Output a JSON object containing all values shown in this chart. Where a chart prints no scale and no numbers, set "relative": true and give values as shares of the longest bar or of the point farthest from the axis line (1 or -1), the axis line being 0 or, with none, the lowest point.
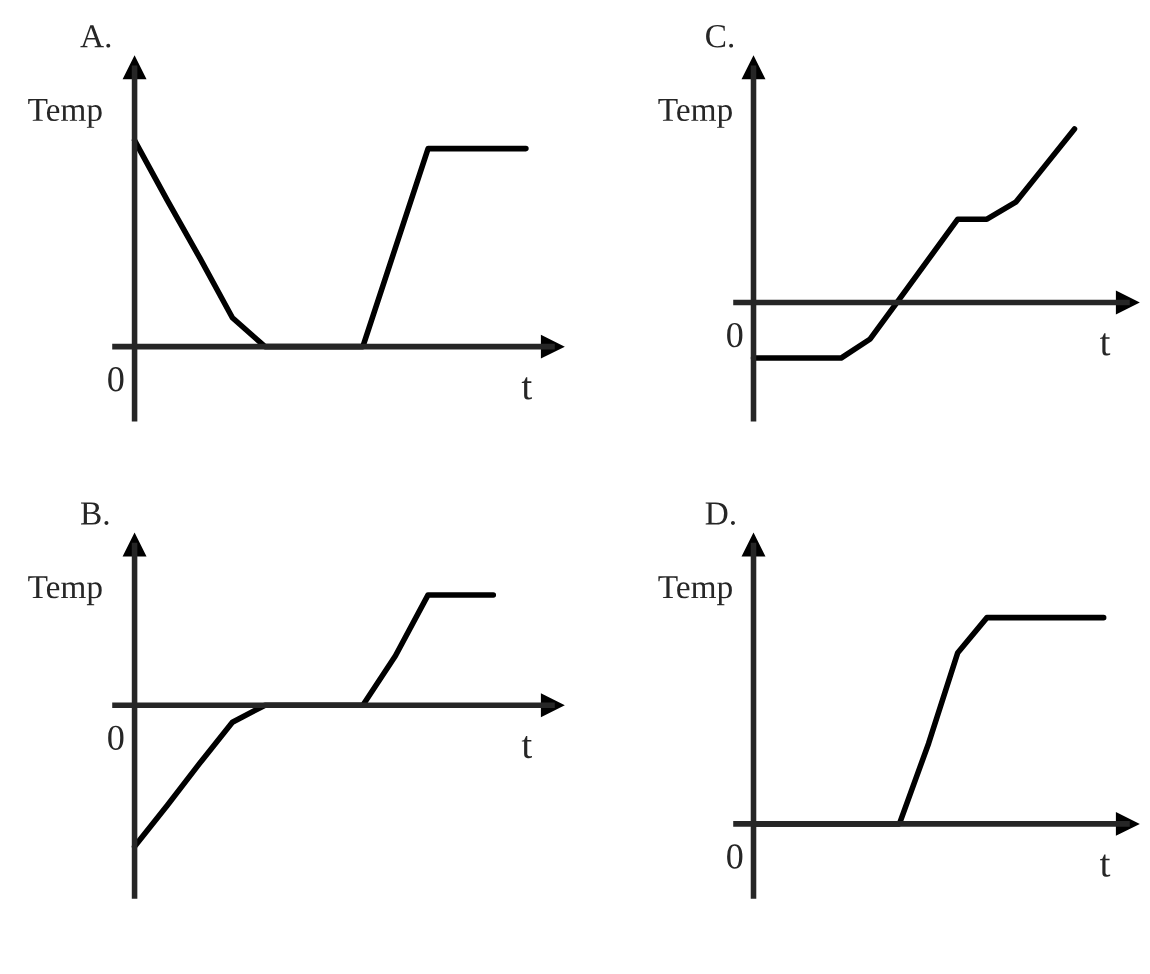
{
  "chart_data": [
    {
      "type": "line",
      "title": "A.",
      "xlabel": "t",
      "ylabel": "Temp",
      "annotations": [
        "0"
      ],
      "relative": true,
      "categories": [
        null,
        null,
        null,
        null,
        null,
        null,
        null,
        null,
        null,
        null,
        null,
        null,
        null
      ],
      "series": [
        {
          "color": "#000000",
          "values": [
            1,
            0.71,
            0.43,
            0.14,
            0,
            0,
            0,
            0,
            0.48,
            0.96,
            0.96,
            0.96,
            0.96
          ]
        }
      ]
    },
    {
      "type": "line",
      "title": "C.",
      "xlabel": "t",
      "ylabel": "Temp",
      "annotations": [
        "0"
      ],
      "relative": true,
      "categories": [
        null,
        null,
        null,
        null,
        null,
        null,
        null,
        null,
        null,
        null,
        null,
        null,
        null
      ],
      "series": [
        {
          "color": "#000000",
          "values": [
            -0.32,
            -0.32,
            -0.32,
            -0.32,
            -0.21,
            0.02,
            0.25,
            0.48,
            0.48,
            0.58,
            0.79,
            1,
            null
          ]
        }
      ]
    },
    {
      "type": "line",
      "title": "B.",
      "xlabel": "t",
      "ylabel": "Temp",
      "annotations": [
        "0"
      ],
      "relative": true,
      "categories": [
        null,
        null,
        null,
        null,
        null,
        null,
        null,
        null,
        null,
        null,
        null,
        null,
        null
      ],
      "series": [
        {
          "color": "#000000",
          "values": [
            -1,
            -0.71,
            -0.41,
            -0.12,
            0,
            0,
            0,
            0,
            0.35,
            0.78,
            0.78,
            0.78,
            null
          ]
        }
      ]
    },
    {
      "type": "line",
      "title": "D.",
      "xlabel": "t",
      "ylabel": "Temp",
      "annotations": [
        "0"
      ],
      "relative": true,
      "categories": [
        null,
        null,
        null,
        null,
        null,
        null,
        null,
        null,
        null,
        null,
        null,
        null,
        null
      ],
      "series": [
        {
          "color": "#000000",
          "values": [
            0,
            0,
            0,
            0,
            0,
            0,
            0.39,
            0.83,
            1,
            1,
            1,
            1,
            1
          ]
        }
      ]
    }
  ]
}
